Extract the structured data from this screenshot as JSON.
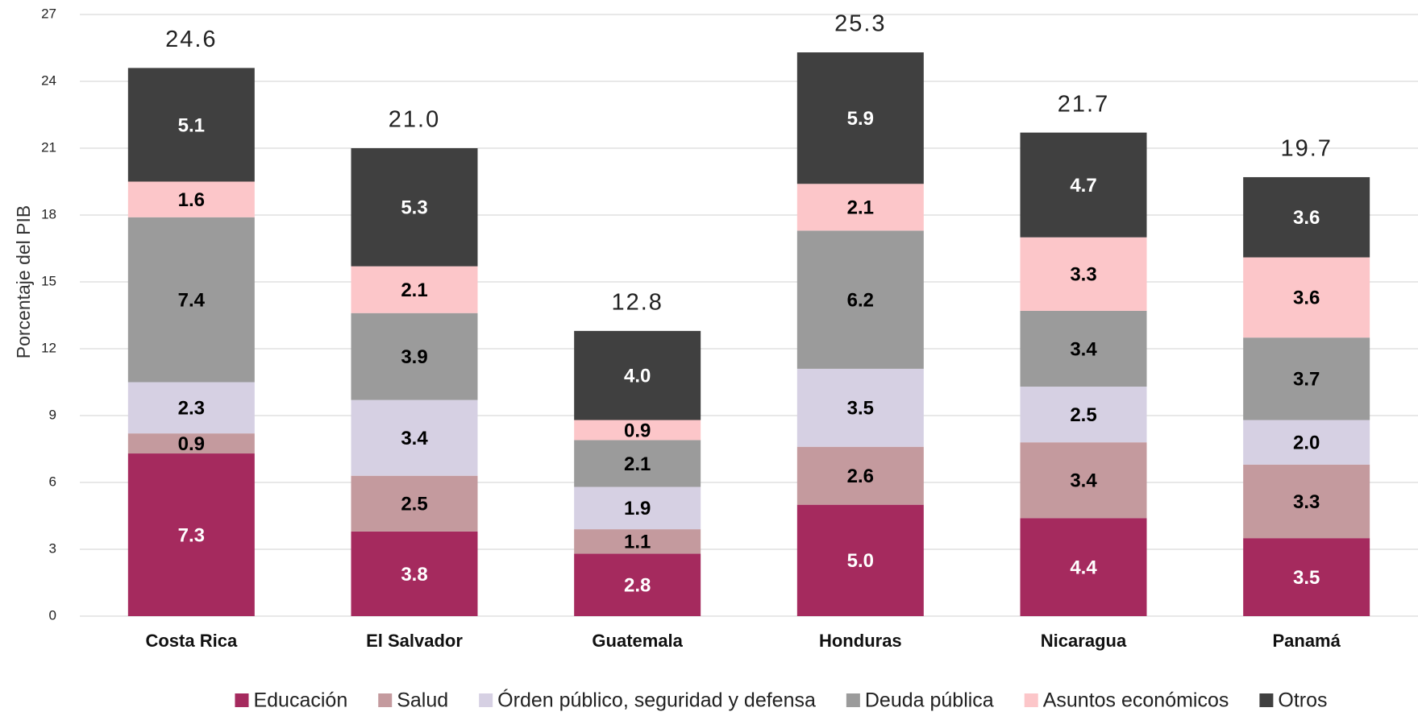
{
  "chart_data": {
    "type": "stacked_bar",
    "y_label": "Porcentaje del PIB",
    "categories": [
      "Costa Rica",
      "El Salvador",
      "Guatemala",
      "Honduras",
      "Nicaragua",
      "Panamá"
    ],
    "series": [
      {
        "name": "Educación",
        "color": "#a52a5e",
        "label_color": "#ffffff",
        "values": [
          7.3,
          3.8,
          2.8,
          5.0,
          4.4,
          3.5
        ],
        "value_labels": [
          "7.3",
          "3.8",
          "2.8",
          "5.0",
          "4.4",
          "3.5"
        ]
      },
      {
        "name": "Salud",
        "color": "#c49a9e",
        "label_color": "#000000",
        "values": [
          0.9,
          2.5,
          1.1,
          2.6,
          3.4,
          3.3
        ],
        "value_labels": [
          "0.9",
          "2.5",
          "1.1",
          "2.6",
          "3.4",
          "3.3"
        ]
      },
      {
        "name": "Órden público, seguridad y defensa",
        "color": "#d6d0e3",
        "label_color": "#000000",
        "values": [
          2.3,
          3.4,
          1.9,
          3.5,
          2.5,
          2.0
        ],
        "value_labels": [
          "2.3",
          "3.4",
          "1.9",
          "3.5",
          "2.5",
          "2.0"
        ]
      },
      {
        "name": "Deuda pública",
        "color": "#9b9b9b",
        "label_color": "#000000",
        "values": [
          7.4,
          3.9,
          2.1,
          6.2,
          3.4,
          3.7
        ],
        "value_labels": [
          "7.4",
          "3.9",
          "2.1",
          "6.2",
          "3.4",
          "3.7"
        ]
      },
      {
        "name": "Asuntos económicos",
        "color": "#fcc6c9",
        "label_color": "#000000",
        "values": [
          1.6,
          2.1,
          0.9,
          2.1,
          3.3,
          3.6
        ],
        "value_labels": [
          "1.6",
          "2.1",
          "0.9",
          "2.1",
          "3.3",
          "3.6"
        ]
      },
      {
        "name": "Otros",
        "color": "#404040",
        "label_color": "#ffffff",
        "values": [
          5.1,
          5.3,
          4.0,
          5.9,
          4.7,
          3.6
        ],
        "value_labels": [
          "5.1",
          "5.3",
          "4.0",
          "5.9",
          "4.7",
          "3.6"
        ]
      }
    ],
    "totals": [
      24.6,
      21.0,
      12.8,
      25.3,
      21.7,
      19.7
    ],
    "total_labels": [
      "24.6",
      "21.0",
      "12.8",
      "25.3",
      "21.7",
      "19.7"
    ],
    "ylim": [
      0,
      27
    ],
    "yticks": [
      0,
      3,
      6,
      9,
      12,
      15,
      18,
      21,
      24,
      27
    ],
    "grid": true
  }
}
